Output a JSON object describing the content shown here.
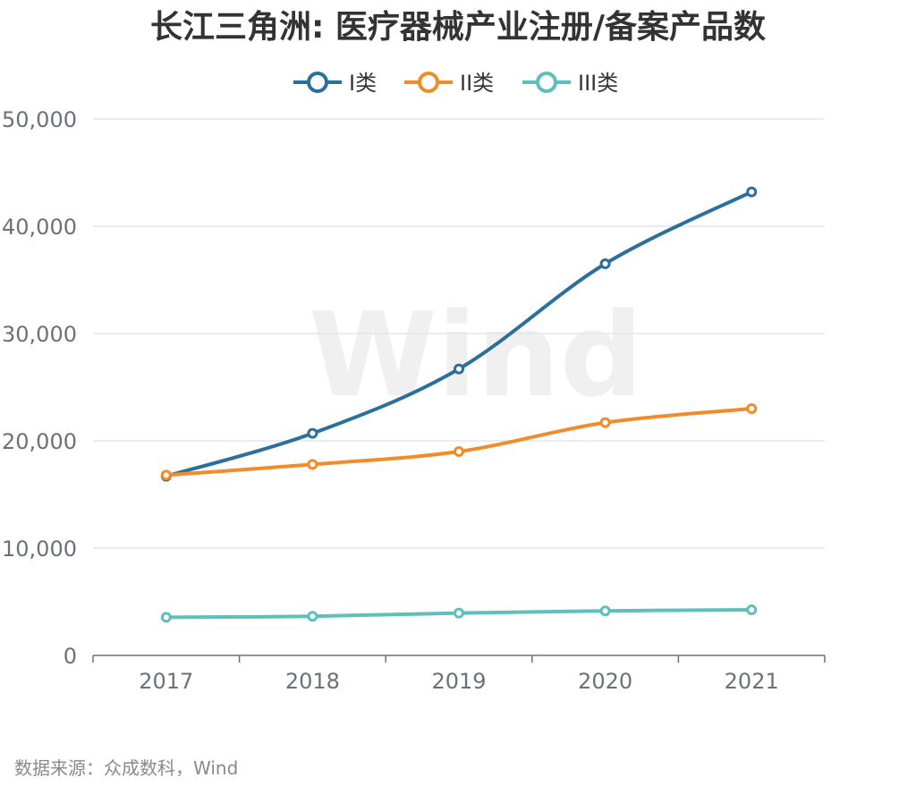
{
  "chart_data": {
    "type": "line",
    "title": "长江三角洲: 医疗器械产业注册/备案产品数",
    "categories": [
      "2017",
      "2018",
      "2019",
      "2020",
      "2021"
    ],
    "series": [
      {
        "name": "I类",
        "color": "#2b6f9c",
        "values": [
          16700,
          20700,
          26700,
          36500,
          43200
        ]
      },
      {
        "name": "II类",
        "color": "#f08c2a",
        "values": [
          16800,
          17800,
          19000,
          21700,
          23000
        ]
      },
      {
        "name": "III类",
        "color": "#5fbfbb",
        "values": [
          3550,
          3650,
          3950,
          4150,
          4250
        ]
      }
    ],
    "ylim": [
      0,
      50000
    ],
    "yticks": [
      "0",
      "10,000",
      "20,000",
      "30,000",
      "40,000",
      "50,000"
    ],
    "ytick_values": [
      0,
      10000,
      20000,
      30000,
      40000,
      50000
    ],
    "grid": true,
    "legend_position": "top-center",
    "xlabel": "",
    "ylabel": ""
  },
  "source": "数据来源：众成数科，Wind",
  "watermark": "Wind"
}
